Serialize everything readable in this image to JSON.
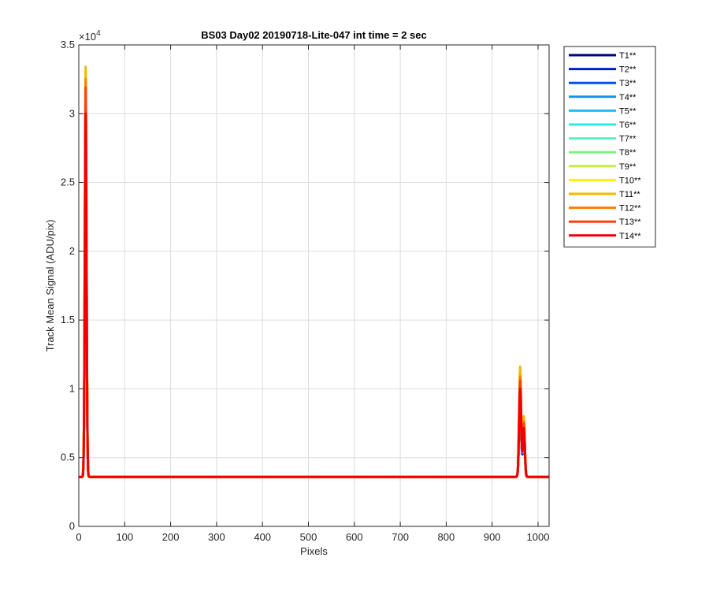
{
  "chart_data": {
    "type": "line",
    "title": "BS03 Day02 20190718-Lite-047 int time = 2 sec",
    "xlabel": "Pixels",
    "ylabel": "Track Mean Signal (ADU/pix)",
    "xlim": [
      0,
      1024
    ],
    "ylim": [
      0,
      35000
    ],
    "x_ticks": [
      0,
      100,
      200,
      300,
      400,
      500,
      600,
      700,
      800,
      900,
      1000
    ],
    "y_ticks": [
      0,
      5000,
      10000,
      15000,
      20000,
      25000,
      30000,
      35000
    ],
    "y_tick_labels": [
      "0",
      "0.5",
      "1",
      "1.5",
      "2",
      "2.5",
      "3",
      "3.5"
    ],
    "y_exponent": {
      "base": "×10",
      "power": "4"
    },
    "grid": true,
    "legend_position": "outside-top-right",
    "baseline": 3600,
    "series": [
      {
        "name": "T1**",
        "color": "#00008F",
        "peak1": 29000,
        "peak2": 9300
      },
      {
        "name": "T2**",
        "color": "#0020CF",
        "peak1": 29500,
        "peak2": 9500
      },
      {
        "name": "T3**",
        "color": "#0050F0",
        "peak1": 30000,
        "peak2": 9600
      },
      {
        "name": "T4**",
        "color": "#1E8FF0",
        "peak1": 30500,
        "peak2": 9700
      },
      {
        "name": "T5**",
        "color": "#20BFEF",
        "peak1": 31000,
        "peak2": 9800
      },
      {
        "name": "T6**",
        "color": "#30E8E8",
        "peak1": 31200,
        "peak2": 9900
      },
      {
        "name": "T7**",
        "color": "#60F0C0",
        "peak1": 31500,
        "peak2": 10000
      },
      {
        "name": "T8**",
        "color": "#80F080",
        "peak1": 31800,
        "peak2": 10100
      },
      {
        "name": "T9**",
        "color": "#C0F040",
        "peak1": 32200,
        "peak2": 10300
      },
      {
        "name": "T10**",
        "color": "#FFF000",
        "peak1": 32800,
        "peak2": 10800
      },
      {
        "name": "T11**",
        "color": "#F5B800",
        "peak1": 33400,
        "peak2": 11600
      },
      {
        "name": "T12**",
        "color": "#FF7F00",
        "peak1": 32500,
        "peak2": 10900
      },
      {
        "name": "T13**",
        "color": "#FF4010",
        "peak1": 31900,
        "peak2": 10600
      },
      {
        "name": "T14**",
        "color": "#F00000",
        "peak1": 30000,
        "peak2": 10000
      }
    ],
    "peak1_center": 15,
    "peak2_center": 961
  }
}
